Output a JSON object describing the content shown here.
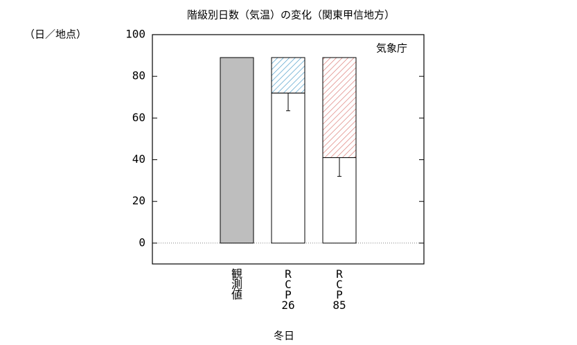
{
  "chart_data": {
    "type": "bar",
    "title": "階級別日数（気温）の変化（関東甲信地方）",
    "y_unit": "（日／地点）",
    "annotation": "気象庁",
    "x_label": "冬日",
    "categories": [
      "観測値",
      "RCP26",
      "RCP85"
    ],
    "series": [
      {
        "color": "#bebebe",
        "values": [
          89,
          null,
          null
        ]
      },
      {
        "color": "#ffffff",
        "values": [
          null,
          72,
          41
        ],
        "errors": [
          null,
          8.5,
          9
        ]
      },
      {
        "colors": [
          null,
          "#4a9cc9",
          "#d9706a"
        ],
        "hatch": true,
        "values": [
          null,
          17,
          48
        ]
      }
    ],
    "stacked": true,
    "ylim": [
      -10,
      100
    ],
    "yticks": [
      0,
      20,
      40,
      60,
      80,
      100
    ]
  }
}
